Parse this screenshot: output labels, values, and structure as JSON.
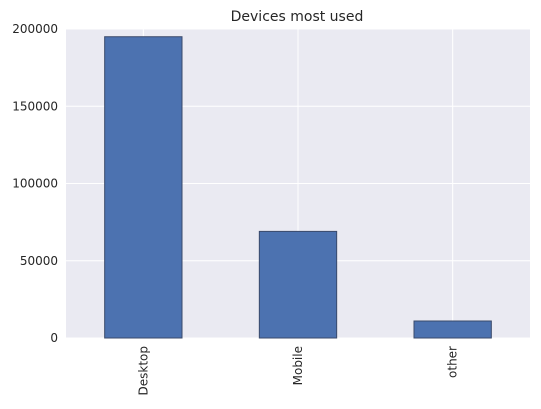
{
  "chart_data": {
    "type": "bar",
    "title": "Devices most used",
    "xlabel": "",
    "ylabel": "",
    "categories": [
      "Desktop",
      "Mobile",
      "other"
    ],
    "values": [
      195000,
      69000,
      11000
    ],
    "ylim": [
      0,
      200000
    ],
    "yticks": [
      0,
      50000,
      100000,
      150000,
      200000
    ],
    "grid": true,
    "legend": "none",
    "colors": {
      "bar_fill": "#4c72b0",
      "bar_edge": "#3a4a6b",
      "plot_background": "#eaeaf2",
      "grid": "#ffffff"
    }
  }
}
